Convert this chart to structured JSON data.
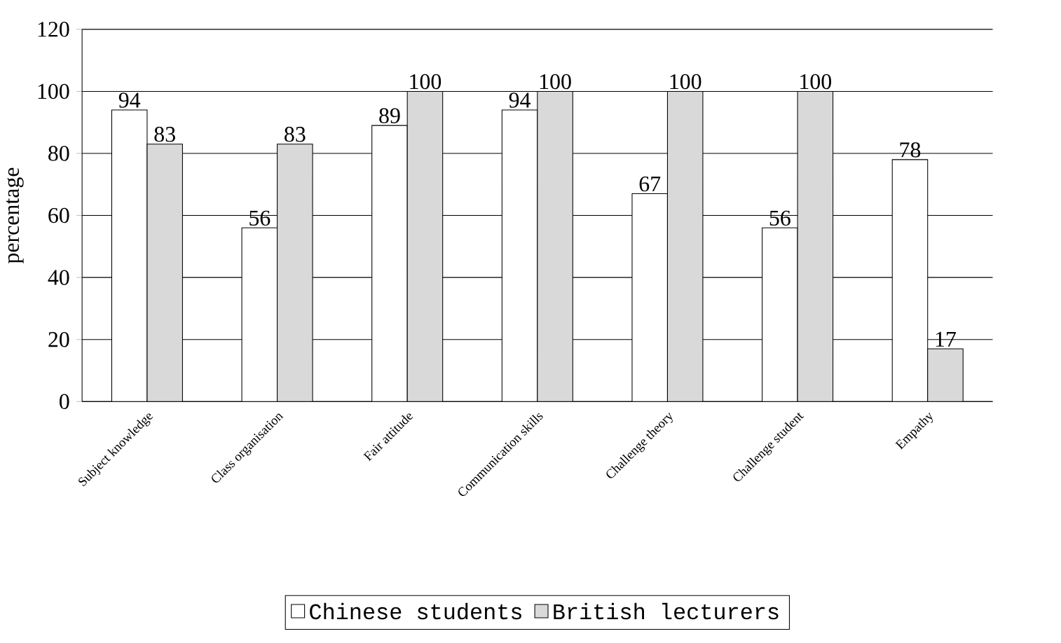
{
  "chart_data": {
    "type": "bar",
    "ylabel": "percentage",
    "categories": [
      "Subject knowledge",
      "Class organisation",
      "Fair attitude",
      "Communication skills",
      "Challenge theory",
      "Challenge student",
      "Empathy"
    ],
    "series": [
      {
        "name": "Chinese students",
        "color": "#ffffff",
        "values": [
          94,
          56,
          89,
          94,
          67,
          56,
          78
        ]
      },
      {
        "name": "British lecturers",
        "color": "#d9d9d9",
        "values": [
          83,
          83,
          100,
          100,
          100,
          100,
          17
        ]
      }
    ],
    "ylim": [
      0,
      120
    ],
    "yticks": [
      0,
      20,
      40,
      60,
      80,
      100,
      120
    ],
    "grid": "y",
    "data_labels": true,
    "legend": "bottom"
  }
}
